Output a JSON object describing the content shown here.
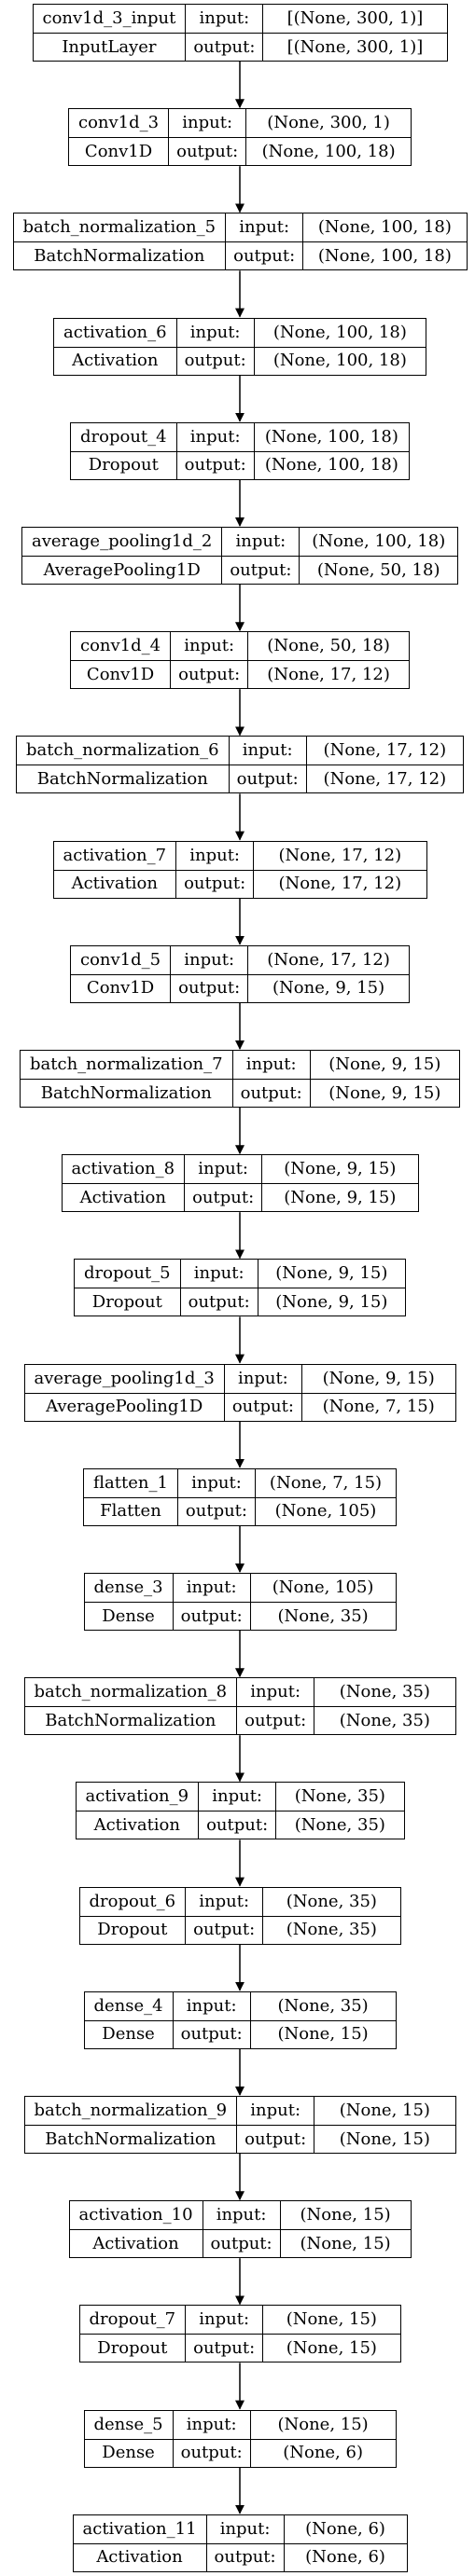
{
  "nodes": [
    {
      "name": "conv1d_3_input",
      "type": "InputLayer",
      "input_label": "input:",
      "output_label": "output:",
      "input": "[(None, 300, 1)]",
      "output": "[(None, 300, 1)]"
    },
    {
      "name": "conv1d_3",
      "type": "Conv1D",
      "input_label": "input:",
      "output_label": "output:",
      "input": "(None, 300, 1)",
      "output": "(None, 100, 18)"
    },
    {
      "name": "batch_normalization_5",
      "type": "BatchNormalization",
      "input_label": "input:",
      "output_label": "output:",
      "input": "(None, 100, 18)",
      "output": "(None, 100, 18)"
    },
    {
      "name": "activation_6",
      "type": "Activation",
      "input_label": "input:",
      "output_label": "output:",
      "input": "(None, 100, 18)",
      "output": "(None, 100, 18)"
    },
    {
      "name": "dropout_4",
      "type": "Dropout",
      "input_label": "input:",
      "output_label": "output:",
      "input": "(None, 100, 18)",
      "output": "(None, 100, 18)"
    },
    {
      "name": "average_pooling1d_2",
      "type": "AveragePooling1D",
      "input_label": "input:",
      "output_label": "output:",
      "input": "(None, 100, 18)",
      "output": "(None, 50, 18)"
    },
    {
      "name": "conv1d_4",
      "type": "Conv1D",
      "input_label": "input:",
      "output_label": "output:",
      "input": "(None, 50, 18)",
      "output": "(None, 17, 12)"
    },
    {
      "name": "batch_normalization_6",
      "type": "BatchNormalization",
      "input_label": "input:",
      "output_label": "output:",
      "input": "(None, 17, 12)",
      "output": "(None, 17, 12)"
    },
    {
      "name": "activation_7",
      "type": "Activation",
      "input_label": "input:",
      "output_label": "output:",
      "input": "(None, 17, 12)",
      "output": "(None, 17, 12)"
    },
    {
      "name": "conv1d_5",
      "type": "Conv1D",
      "input_label": "input:",
      "output_label": "output:",
      "input": "(None, 17, 12)",
      "output": "(None, 9, 15)"
    },
    {
      "name": "batch_normalization_7",
      "type": "BatchNormalization",
      "input_label": "input:",
      "output_label": "output:",
      "input": "(None, 9, 15)",
      "output": "(None, 9, 15)"
    },
    {
      "name": "activation_8",
      "type": "Activation",
      "input_label": "input:",
      "output_label": "output:",
      "input": "(None, 9, 15)",
      "output": "(None, 9, 15)"
    },
    {
      "name": "dropout_5",
      "type": "Dropout",
      "input_label": "input:",
      "output_label": "output:",
      "input": "(None, 9, 15)",
      "output": "(None, 9, 15)"
    },
    {
      "name": "average_pooling1d_3",
      "type": "AveragePooling1D",
      "input_label": "input:",
      "output_label": "output:",
      "input": "(None, 9, 15)",
      "output": "(None, 7, 15)"
    },
    {
      "name": "flatten_1",
      "type": "Flatten",
      "input_label": "input:",
      "output_label": "output:",
      "input": "(None, 7, 15)",
      "output": "(None, 105)"
    },
    {
      "name": "dense_3",
      "type": "Dense",
      "input_label": "input:",
      "output_label": "output:",
      "input": "(None, 105)",
      "output": "(None, 35)"
    },
    {
      "name": "batch_normalization_8",
      "type": "BatchNormalization",
      "input_label": "input:",
      "output_label": "output:",
      "input": "(None, 35)",
      "output": "(None, 35)"
    },
    {
      "name": "activation_9",
      "type": "Activation",
      "input_label": "input:",
      "output_label": "output:",
      "input": "(None, 35)",
      "output": "(None, 35)"
    },
    {
      "name": "dropout_6",
      "type": "Dropout",
      "input_label": "input:",
      "output_label": "output:",
      "input": "(None, 35)",
      "output": "(None, 35)"
    },
    {
      "name": "dense_4",
      "type": "Dense",
      "input_label": "input:",
      "output_label": "output:",
      "input": "(None, 35)",
      "output": "(None, 15)"
    },
    {
      "name": "batch_normalization_9",
      "type": "BatchNormalization",
      "input_label": "input:",
      "output_label": "output:",
      "input": "(None, 15)",
      "output": "(None, 15)"
    },
    {
      "name": "activation_10",
      "type": "Activation",
      "input_label": "input:",
      "output_label": "output:",
      "input": "(None, 15)",
      "output": "(None, 15)"
    },
    {
      "name": "dropout_7",
      "type": "Dropout",
      "input_label": "input:",
      "output_label": "output:",
      "input": "(None, 15)",
      "output": "(None, 15)"
    },
    {
      "name": "dense_5",
      "type": "Dense",
      "input_label": "input:",
      "output_label": "output:",
      "input": "(None, 15)",
      "output": "(None, 6)"
    },
    {
      "name": "activation_11",
      "type": "Activation",
      "input_label": "input:",
      "output_label": "output:",
      "input": "(None, 6)",
      "output": "(None, 6)"
    }
  ],
  "edges": [
    [
      0,
      1
    ],
    [
      1,
      2
    ],
    [
      2,
      3
    ],
    [
      3,
      4
    ],
    [
      4,
      5
    ],
    [
      5,
      6
    ],
    [
      6,
      7
    ],
    [
      7,
      8
    ],
    [
      8,
      9
    ],
    [
      9,
      10
    ],
    [
      10,
      11
    ],
    [
      11,
      12
    ],
    [
      12,
      13
    ],
    [
      13,
      14
    ],
    [
      14,
      15
    ],
    [
      15,
      16
    ],
    [
      16,
      17
    ],
    [
      17,
      18
    ],
    [
      18,
      19
    ],
    [
      19,
      20
    ],
    [
      20,
      21
    ],
    [
      21,
      22
    ],
    [
      22,
      23
    ],
    [
      23,
      24
    ]
  ],
  "colors": {
    "stroke": "#000000",
    "background": "#ffffff",
    "text": "#000000"
  }
}
